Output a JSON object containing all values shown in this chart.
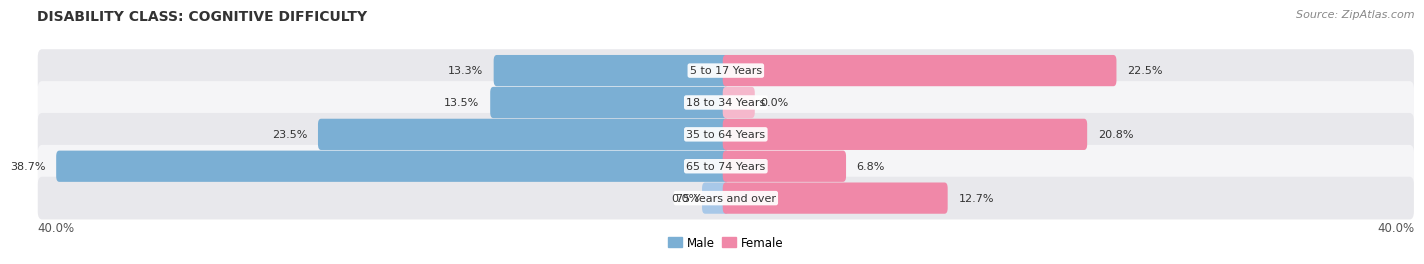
{
  "title": "DISABILITY CLASS: COGNITIVE DIFFICULTY",
  "source": "Source: ZipAtlas.com",
  "categories": [
    "5 to 17 Years",
    "18 to 34 Years",
    "35 to 64 Years",
    "65 to 74 Years",
    "75 Years and over"
  ],
  "male_values": [
    13.3,
    13.5,
    23.5,
    38.7,
    0.0
  ],
  "female_values": [
    22.5,
    0.0,
    20.8,
    6.8,
    12.7
  ],
  "male_color": "#7bafd4",
  "female_color": "#f088a8",
  "male_color_light": "#a8c8e8",
  "female_color_light": "#f5b8cc",
  "row_bg_colors": [
    "#e8e8ec",
    "#f5f5f7",
    "#e8e8ec",
    "#f5f5f7",
    "#e8e8ec"
  ],
  "x_max": 40.0,
  "axis_label_left": "40.0%",
  "axis_label_right": "40.0%",
  "title_fontsize": 10,
  "source_fontsize": 8,
  "label_fontsize": 8.5,
  "category_fontsize": 8,
  "value_fontsize": 8,
  "background_color": "#ffffff"
}
